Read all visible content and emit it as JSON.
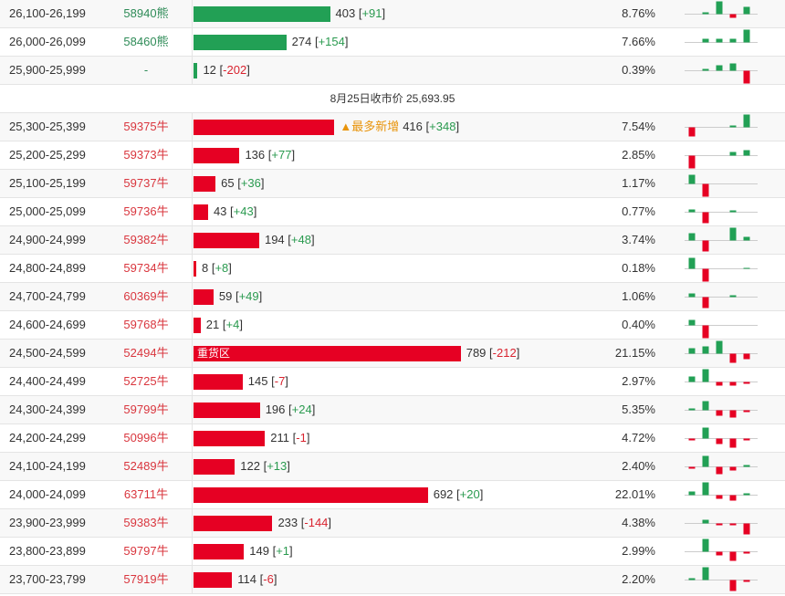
{
  "brackets": [
    "[",
    "]"
  ],
  "upper_rows": [
    {
      "range": "26,100-26,199",
      "code": "58940熊",
      "count": 403,
      "change": "+91",
      "pct": "8.76%",
      "color": "#22a055",
      "spark": [
        0,
        2,
        14,
        -4,
        8
      ]
    },
    {
      "range": "26,000-26,099",
      "code": "58460熊",
      "count": 274,
      "change": "+154",
      "pct": "7.66%",
      "color": "#22a055",
      "spark": [
        0,
        4,
        4,
        4,
        14
      ]
    },
    {
      "range": "25,900-25,999",
      "code": "-",
      "count": 12,
      "change": "-202",
      "pct": "0.39%",
      "color": "#22a055",
      "spark": [
        0,
        2,
        6,
        8,
        -14
      ]
    }
  ],
  "divider": "8月25日收市价 25,693.95",
  "lower_rows": [
    {
      "range": "25,300-25,399",
      "code": "59375牛",
      "count": 416,
      "change": "+348",
      "pct": "7.54%",
      "color": "#e60023",
      "tag": "▲最多新增",
      "spark": [
        -10,
        0,
        0,
        2,
        14
      ]
    },
    {
      "range": "25,200-25,299",
      "code": "59373牛",
      "count": 136,
      "change": "+77",
      "pct": "2.85%",
      "color": "#e60023",
      "spark": [
        -14,
        0,
        0,
        4,
        6
      ]
    },
    {
      "range": "25,100-25,199",
      "code": "59737牛",
      "count": 65,
      "change": "+36",
      "pct": "1.17%",
      "color": "#e60023",
      "spark": [
        10,
        -14,
        0,
        0,
        0
      ]
    },
    {
      "range": "25,000-25,099",
      "code": "59736牛",
      "count": 43,
      "change": "+43",
      "pct": "0.77%",
      "color": "#e60023",
      "spark": [
        3,
        -12,
        0,
        2,
        0
      ]
    },
    {
      "range": "24,900-24,999",
      "code": "59382牛",
      "count": 194,
      "change": "+48",
      "pct": "3.74%",
      "color": "#e60023",
      "spark": [
        8,
        -12,
        0,
        14,
        4
      ]
    },
    {
      "range": "24,800-24,899",
      "code": "59734牛",
      "count": 8,
      "change": "+8",
      "pct": "0.18%",
      "color": "#e60023",
      "spark": [
        12,
        -14,
        0,
        0,
        1
      ]
    },
    {
      "range": "24,700-24,799",
      "code": "60369牛",
      "count": 59,
      "change": "+49",
      "pct": "1.06%",
      "color": "#e60023",
      "spark": [
        4,
        -12,
        0,
        2,
        0
      ]
    },
    {
      "range": "24,600-24,699",
      "code": "59768牛",
      "count": 21,
      "change": "+4",
      "pct": "0.40%",
      "color": "#e60023",
      "spark": [
        6,
        -14,
        0,
        0,
        0
      ]
    },
    {
      "range": "24,500-24,599",
      "code": "52494牛",
      "count": 789,
      "change": "-212",
      "pct": "21.15%",
      "color": "#e60023",
      "bar_label": "重货区",
      "spark": [
        6,
        8,
        14,
        -10,
        -6
      ]
    },
    {
      "range": "24,400-24,499",
      "code": "52725牛",
      "count": 145,
      "change": "-7",
      "pct": "2.97%",
      "color": "#e60023",
      "spark": [
        6,
        14,
        -4,
        -4,
        -2
      ]
    },
    {
      "range": "24,300-24,399",
      "code": "59799牛",
      "count": 196,
      "change": "+24",
      "pct": "5.35%",
      "color": "#e60023",
      "spark": [
        2,
        10,
        -6,
        -8,
        -2
      ]
    },
    {
      "range": "24,200-24,299",
      "code": "50996牛",
      "count": 211,
      "change": "-1",
      "pct": "4.72%",
      "color": "#e60023",
      "spark": [
        -2,
        12,
        -6,
        -10,
        -2
      ]
    },
    {
      "range": "24,100-24,199",
      "code": "52489牛",
      "count": 122,
      "change": "+13",
      "pct": "2.40%",
      "color": "#e60023",
      "spark": [
        -2,
        12,
        -8,
        -4,
        2
      ]
    },
    {
      "range": "24,000-24,099",
      "code": "63711牛",
      "count": 692,
      "change": "+20",
      "pct": "22.01%",
      "color": "#e60023",
      "spark": [
        4,
        14,
        -4,
        -6,
        2
      ]
    },
    {
      "range": "23,900-23,999",
      "code": "59383牛",
      "count": 233,
      "change": "-144",
      "pct": "4.38%",
      "color": "#e60023",
      "spark": [
        0,
        4,
        -2,
        -2,
        -12
      ]
    },
    {
      "range": "23,800-23,899",
      "code": "59797牛",
      "count": 149,
      "change": "+1",
      "pct": "2.99%",
      "color": "#e60023",
      "spark": [
        0,
        14,
        -4,
        -10,
        -2
      ]
    },
    {
      "range": "23,700-23,799",
      "code": "57919牛",
      "count": 114,
      "change": "-6",
      "pct": "2.20%",
      "color": "#e60023",
      "spark": [
        2,
        14,
        0,
        -12,
        -2
      ]
    }
  ]
}
